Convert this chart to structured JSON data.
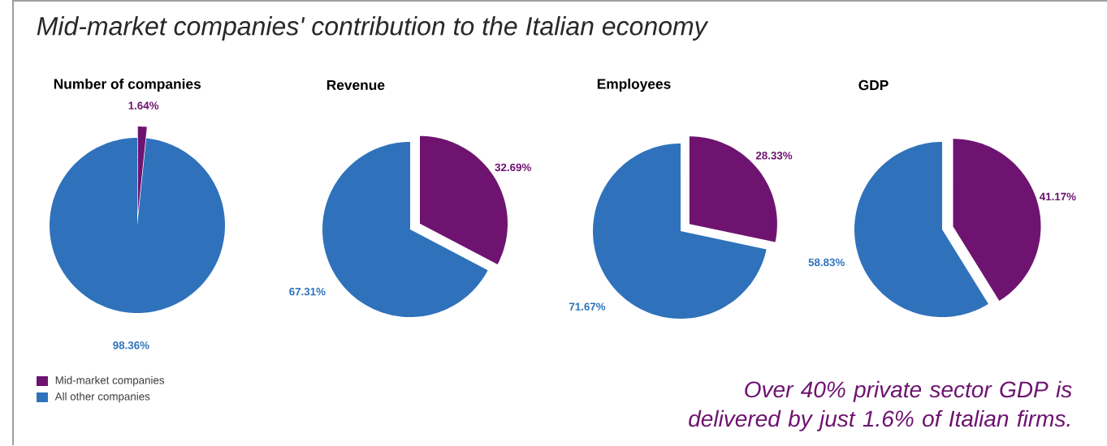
{
  "chart_data": [
    {
      "type": "pie",
      "title": "Number of companies",
      "categories": [
        "Mid-market companies",
        "All other companies"
      ],
      "values": [
        1.64,
        98.36
      ],
      "colors": [
        "#6e1470",
        "#2f72bb"
      ],
      "value_labels": [
        "1.64%",
        "98.36%"
      ],
      "legend": "bottom left"
    },
    {
      "type": "pie",
      "title": "Revenue",
      "values": [
        32.69,
        67.31
      ],
      "colors": [
        "#6e1470",
        "#2f72bb"
      ],
      "value_labels": [
        "32.69%",
        "67.31%"
      ]
    },
    {
      "type": "pie",
      "title": "Employees",
      "values": [
        28.33,
        71.67
      ],
      "colors": [
        "#6e1470",
        "#2f72bb"
      ],
      "value_labels": [
        "28.33%",
        "71.67%"
      ]
    },
    {
      "type": "pie",
      "title": "GDP",
      "values": [
        41.17,
        58.83
      ],
      "colors": [
        "#6e1470",
        "#2f72bb"
      ],
      "value_labels": [
        "41.17%",
        "58.83%"
      ]
    },
    {
      "type": "other",
      "title": "Mid-market companies' contribution to the Italian economy",
      "annotations": [
        "Over 40% private sector GDP is delivered by just 1.6% of Italian firms."
      ]
    }
  ]
}
